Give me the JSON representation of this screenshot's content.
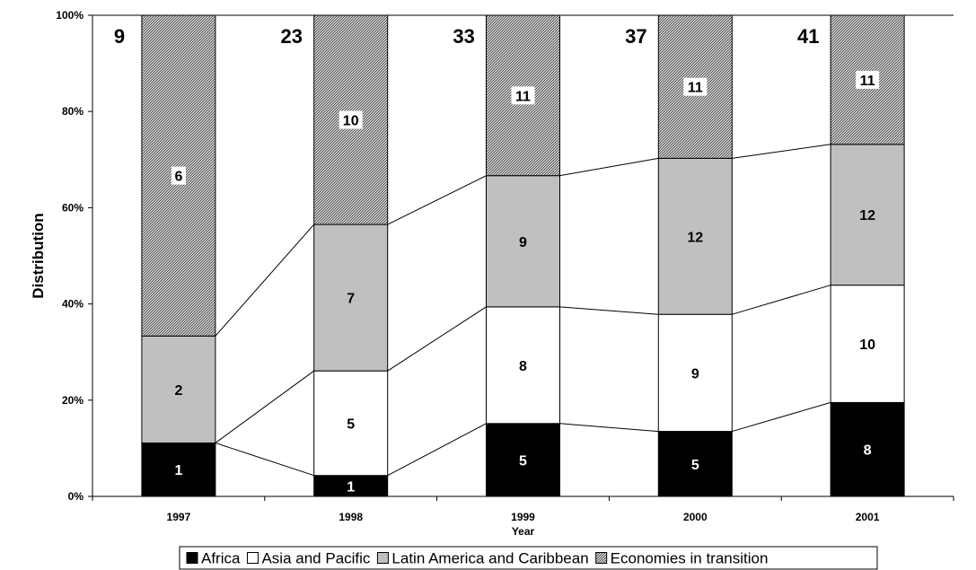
{
  "chart_data": {
    "type": "bar",
    "stacked": true,
    "percent": true,
    "title": "",
    "xlabel": "Year",
    "ylabel": "Distribution",
    "ylim": [
      0,
      100
    ],
    "yticks": [
      "0%",
      "20%",
      "40%",
      "60%",
      "80%",
      "100%"
    ],
    "categories": [
      "1997",
      "1998",
      "1999",
      "2000",
      "2001"
    ],
    "totals": [
      9,
      23,
      33,
      37,
      41
    ],
    "series": [
      {
        "name": "Africa",
        "values": [
          1,
          1,
          5,
          5,
          8
        ],
        "color": "#000000",
        "pattern": "solid",
        "label_color": "#ffffff"
      },
      {
        "name": "Asia and Pacific",
        "values": [
          0,
          5,
          8,
          9,
          10
        ],
        "color": "#ffffff",
        "pattern": "solid",
        "label_color": "#000000"
      },
      {
        "name": "Latin America and Caribbean",
        "values": [
          2,
          7,
          9,
          12,
          12
        ],
        "color": "#c0c0c0",
        "pattern": "solid",
        "label_color": "#000000"
      },
      {
        "name": "Economies in transition",
        "values": [
          6,
          10,
          11,
          11,
          11
        ],
        "color": "#808080",
        "pattern": "hatch",
        "label_color": "#000000"
      }
    ],
    "series_lines": true,
    "grid": false,
    "legend": "bottom"
  }
}
